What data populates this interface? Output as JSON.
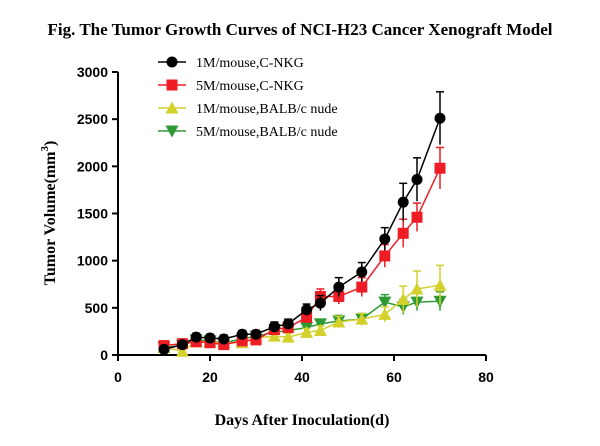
{
  "chart_data": {
    "type": "line",
    "title": "Fig. The Tumor Growth Curves of NCI-H23 Cancer Xenograft Model",
    "xlabel": "Days After Inoculation(d)",
    "ylabel": "Tumor Volume(mm",
    "ylabel_sup": "3",
    "ylabel_close": ")",
    "xlim": [
      0,
      80
    ],
    "ylim": [
      0,
      3000
    ],
    "xticks": [
      0,
      20,
      40,
      60,
      80
    ],
    "yticks": [
      0,
      500,
      1000,
      1500,
      2000,
      2500,
      3000
    ],
    "grid": false,
    "legend_position": "top-left",
    "series": [
      {
        "name": "1M/mouse,C-NKG",
        "color": "#000000",
        "marker": "circle",
        "x": [
          10,
          14,
          17,
          20,
          23,
          27,
          30,
          34,
          37,
          41,
          44,
          48,
          53,
          58,
          62,
          65,
          70
        ],
        "y": [
          60,
          110,
          190,
          180,
          170,
          220,
          220,
          300,
          330,
          480,
          550,
          720,
          880,
          1230,
          1620,
          1860,
          2510
        ],
        "err": [
          20,
          30,
          40,
          40,
          40,
          40,
          40,
          50,
          50,
          60,
          80,
          100,
          100,
          120,
          200,
          230,
          280
        ]
      },
      {
        "name": "5M/mouse,C-NKG",
        "color": "#ee1c25",
        "marker": "square",
        "x": [
          10,
          14,
          17,
          20,
          23,
          27,
          30,
          34,
          37,
          41,
          44,
          48,
          53,
          58,
          62,
          65,
          70
        ],
        "y": [
          100,
          120,
          140,
          130,
          110,
          150,
          160,
          270,
          290,
          400,
          620,
          620,
          720,
          1050,
          1290,
          1460,
          1980
        ],
        "err": [
          20,
          30,
          40,
          40,
          40,
          40,
          40,
          50,
          50,
          60,
          80,
          80,
          100,
          120,
          150,
          150,
          220
        ]
      },
      {
        "name": "1M/mouse,BALB/c nude",
        "color": "#d4d12c",
        "marker": "triangle-up",
        "x": [
          10,
          14,
          17,
          20,
          23,
          27,
          30,
          34,
          37,
          41,
          44,
          48,
          53,
          58,
          62,
          65,
          70
        ],
        "y": [
          80,
          40,
          140,
          140,
          130,
          130,
          180,
          200,
          190,
          240,
          260,
          350,
          380,
          430,
          590,
          700,
          740
        ],
        "err": [
          20,
          30,
          40,
          40,
          40,
          40,
          40,
          40,
          40,
          40,
          50,
          60,
          60,
          80,
          140,
          190,
          210
        ]
      },
      {
        "name": "5M/mouse,BALB/c nude",
        "color": "#2e9a35",
        "marker": "triangle-down",
        "x": [
          10,
          14,
          17,
          20,
          23,
          27,
          30,
          34,
          37,
          41,
          44,
          48,
          53,
          58,
          62,
          65,
          70
        ],
        "y": [
          80,
          100,
          160,
          150,
          130,
          170,
          200,
          240,
          260,
          290,
          330,
          360,
          380,
          560,
          510,
          560,
          570
        ],
        "err": [
          20,
          30,
          40,
          40,
          40,
          40,
          40,
          40,
          40,
          50,
          50,
          60,
          60,
          80,
          80,
          90,
          100
        ]
      }
    ]
  }
}
